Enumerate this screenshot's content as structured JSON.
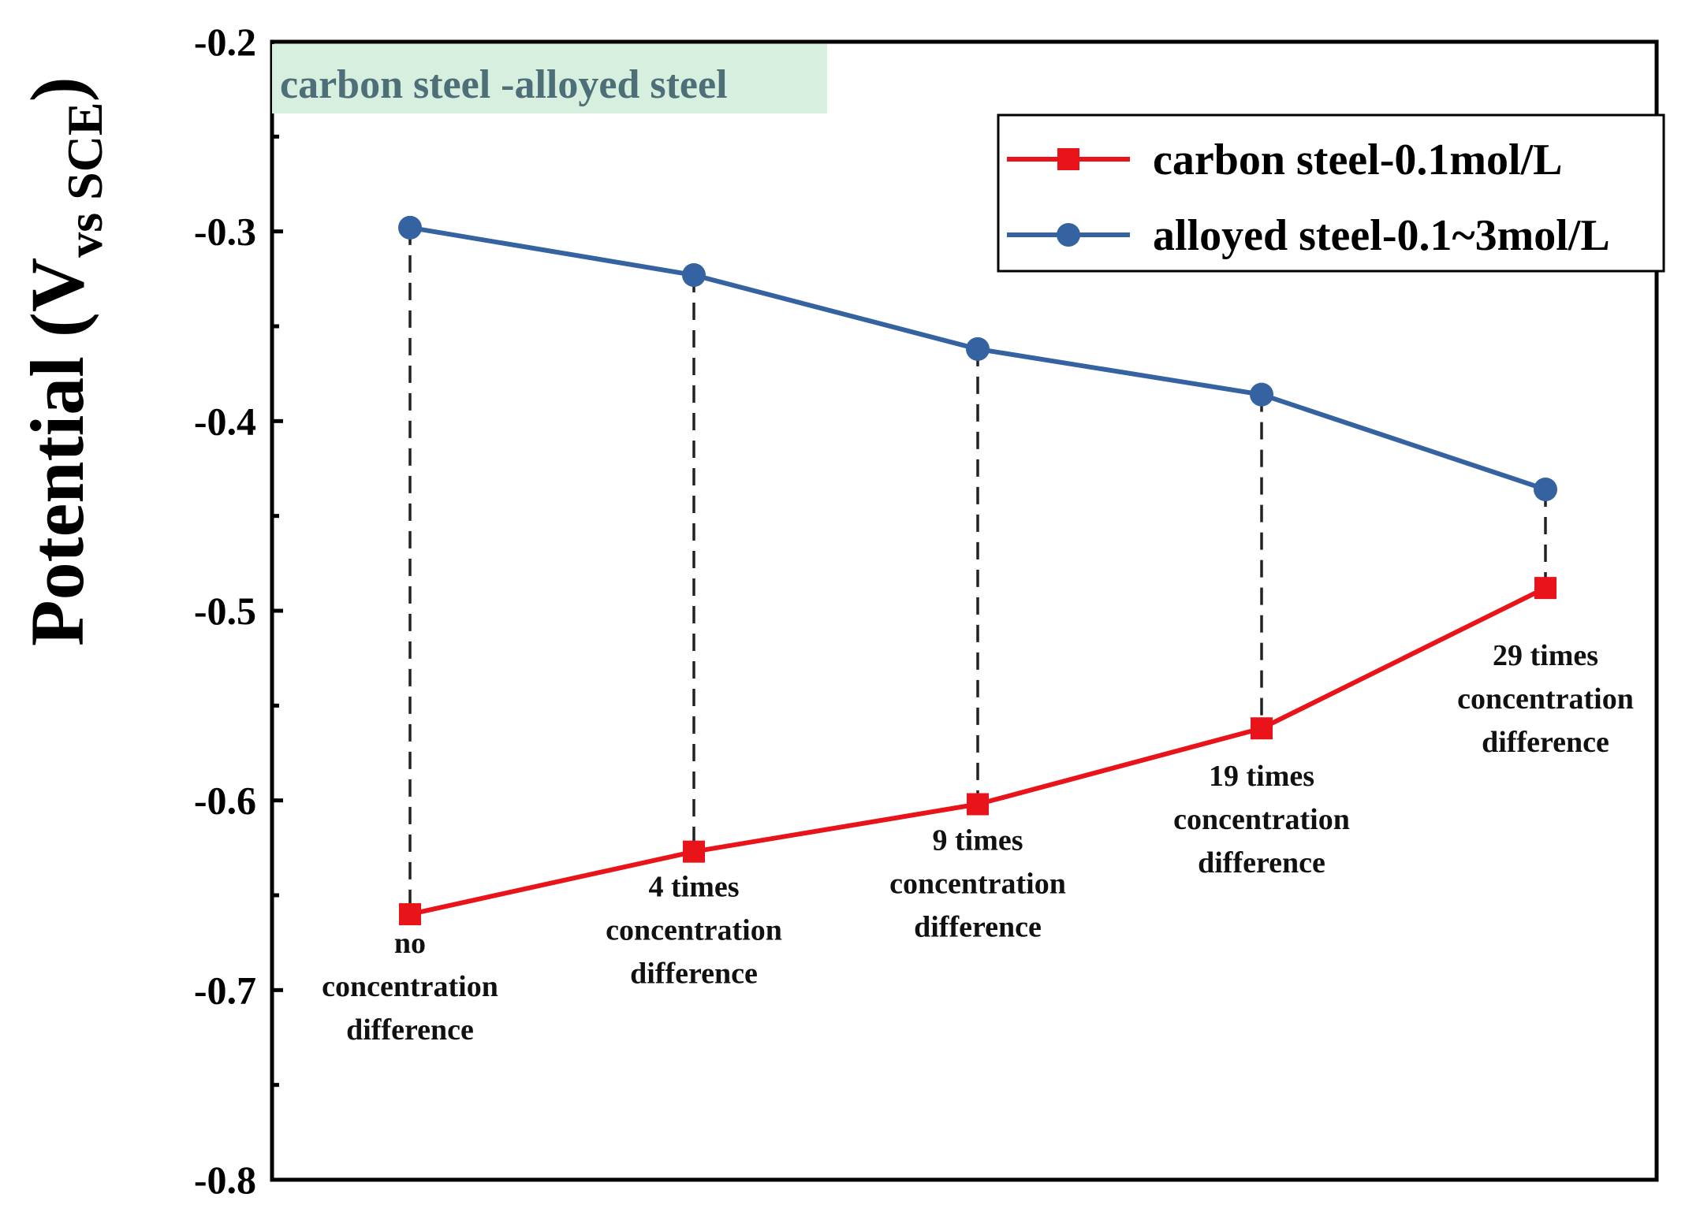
{
  "chart_data": {
    "type": "line",
    "title": "carbon steel -alloyed steel",
    "ylabel": "Potential (V",
    "ylabel_subscript": "vs SCE",
    "ylabel_close": ")",
    "xlabel": "",
    "ylim": [
      -0.8,
      -0.2
    ],
    "yticks": [
      -0.2,
      -0.3,
      -0.4,
      -0.5,
      -0.6,
      -0.7,
      -0.8
    ],
    "ytick_labels": [
      "-0.2",
      "-0.3",
      "-0.4",
      "-0.5",
      "-0.6",
      "-0.7",
      "-0.8"
    ],
    "categories": [
      [
        "no",
        "concentration",
        "difference"
      ],
      [
        "4 times",
        "concentration",
        "difference"
      ],
      [
        "9 times",
        "concentration",
        "difference"
      ],
      [
        "19 times",
        "concentration",
        "difference"
      ],
      [
        "29 times",
        "concentration",
        "difference"
      ]
    ],
    "series": [
      {
        "name": "carbon steel-0.1mol/L",
        "color": "#e8141a",
        "marker": "square",
        "values": [
          -0.66,
          -0.627,
          -0.602,
          -0.562,
          -0.488
        ]
      },
      {
        "name": "alloyed steel-0.1~3mol/L",
        "color": "#3563a2",
        "marker": "circle",
        "values": [
          -0.298,
          -0.323,
          -0.362,
          -0.386,
          -0.436
        ]
      }
    ],
    "grid": false,
    "legend_position": "top-right",
    "title_box_color": "#d6efdf",
    "connector_style": "dashed"
  }
}
